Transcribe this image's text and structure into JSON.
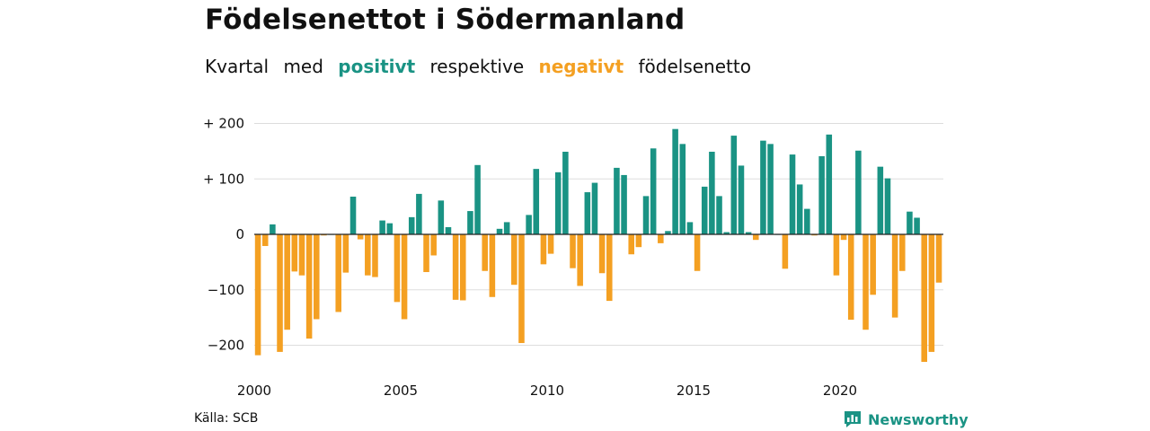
{
  "title": "Födelsenettot i Södermanland",
  "subtitle": {
    "w1": "Kvartal",
    "w2": "med",
    "positive_word": "positivt",
    "w3": "respektive",
    "negative_word": "negativt",
    "w4": "födelsenetto"
  },
  "source": "Källa: SCB",
  "brand": "Newsworthy",
  "colors": {
    "positive": "#1a9384",
    "negative": "#f4a022",
    "grid": "#dddddd"
  },
  "chart_data": {
    "type": "bar",
    "title": "Födelsenettot i Södermanland",
    "xlabel": "",
    "ylabel": "",
    "ylim": [
      -250,
      200
    ],
    "grid": true,
    "y_ticks": [
      {
        "value": 200,
        "label": "+ 200"
      },
      {
        "value": 100,
        "label": "+ 100"
      },
      {
        "value": 0,
        "label": "0"
      },
      {
        "value": -100,
        "label": "−100"
      },
      {
        "value": -200,
        "label": "−200"
      }
    ],
    "x_ticks": [
      "2000",
      "2005",
      "2010",
      "2015",
      "2020"
    ],
    "start_year": 2000,
    "values": [
      -218,
      -21,
      18,
      -212,
      -172,
      -67,
      -74,
      -188,
      -153,
      -2,
      0,
      -140,
      -69,
      68,
      -9,
      -74,
      -77,
      25,
      20,
      -122,
      -153,
      31,
      73,
      -68,
      -38,
      61,
      13,
      -118,
      -119,
      42,
      125,
      -66,
      -113,
      10,
      22,
      -91,
      -196,
      35,
      118,
      -54,
      -35,
      112,
      149,
      -61,
      -93,
      76,
      93,
      -70,
      -120,
      120,
      107,
      -36,
      -23,
      69,
      155,
      -16,
      6,
      190,
      163,
      22,
      -66,
      86,
      149,
      69,
      4,
      178,
      124,
      4,
      -10,
      169,
      163,
      0,
      -62,
      144,
      90,
      46,
      -2,
      141,
      180,
      -74,
      -10,
      -154,
      151,
      -172,
      -109,
      122,
      101,
      -150,
      -66,
      41,
      30,
      -230,
      -212,
      -87
    ]
  }
}
